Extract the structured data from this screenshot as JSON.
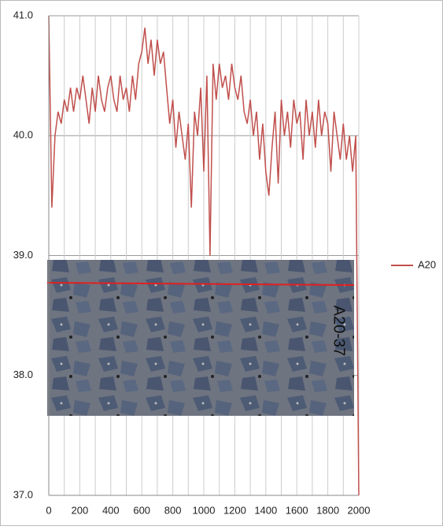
{
  "chart_data": {
    "type": "line",
    "x": [
      0,
      20,
      40,
      60,
      80,
      100,
      120,
      140,
      160,
      180,
      200,
      220,
      240,
      260,
      280,
      300,
      320,
      340,
      360,
      380,
      400,
      420,
      440,
      460,
      480,
      500,
      520,
      540,
      560,
      580,
      600,
      620,
      640,
      660,
      680,
      700,
      720,
      740,
      760,
      780,
      800,
      820,
      840,
      860,
      880,
      900,
      920,
      940,
      960,
      980,
      1000,
      1020,
      1040,
      1060,
      1080,
      1100,
      1120,
      1140,
      1160,
      1180,
      1200,
      1220,
      1240,
      1260,
      1280,
      1300,
      1320,
      1340,
      1360,
      1380,
      1400,
      1420,
      1440,
      1460,
      1480,
      1500,
      1520,
      1540,
      1560,
      1580,
      1600,
      1620,
      1640,
      1660,
      1680,
      1700,
      1720,
      1740,
      1760,
      1780,
      1800,
      1820,
      1840,
      1860,
      1880,
      1900,
      1920,
      1940,
      1960,
      1980,
      2000
    ],
    "series": [
      {
        "name": "A20",
        "color": "#c0504d",
        "values": [
          41.0,
          39.4,
          40.0,
          40.2,
          40.1,
          40.3,
          40.2,
          40.4,
          40.2,
          40.4,
          40.3,
          40.5,
          40.3,
          40.1,
          40.4,
          40.2,
          40.5,
          40.3,
          40.2,
          40.4,
          40.5,
          40.3,
          40.2,
          40.5,
          40.3,
          40.4,
          40.2,
          40.5,
          40.3,
          40.6,
          40.7,
          40.9,
          40.6,
          40.8,
          40.5,
          40.8,
          40.6,
          40.7,
          40.4,
          40.1,
          40.3,
          39.9,
          40.2,
          40.0,
          39.8,
          40.1,
          39.4,
          40.2,
          40.0,
          40.4,
          39.7,
          40.5,
          39.0,
          40.6,
          40.3,
          40.6,
          40.4,
          40.5,
          40.3,
          40.6,
          40.4,
          40.3,
          40.5,
          40.2,
          40.1,
          40.3,
          40.0,
          40.2,
          39.8,
          40.1,
          39.7,
          39.5,
          39.9,
          40.2,
          39.6,
          40.3,
          40.0,
          40.2,
          39.9,
          40.3,
          40.1,
          40.2,
          39.8,
          40.3,
          40.0,
          40.2,
          39.9,
          40.3,
          40.0,
          40.2,
          40.1,
          39.7,
          40.2,
          40.0,
          39.8,
          40.1,
          39.8,
          40.0,
          39.7,
          40.0,
          37.0
        ]
      }
    ],
    "xlim": [
      0,
      2000
    ],
    "xticks": [
      0,
      200,
      400,
      600,
      800,
      1000,
      1200,
      1400,
      1600,
      1800,
      2000
    ],
    "x_minor_grid": [
      100,
      300,
      500,
      700,
      900,
      1100,
      1300,
      1500,
      1700,
      1900
    ],
    "ylim": [
      37,
      41
    ],
    "yticks": [
      {
        "value": 37,
        "label": "37.0"
      },
      {
        "value": 38,
        "label": "38.0"
      },
      {
        "value": 39,
        "label": "39.0"
      },
      {
        "value": 40,
        "label": "40.0"
      },
      {
        "value": 41,
        "label": "41.0"
      }
    ],
    "grid": true,
    "legend": "right",
    "image_annotation": "A20-37"
  }
}
